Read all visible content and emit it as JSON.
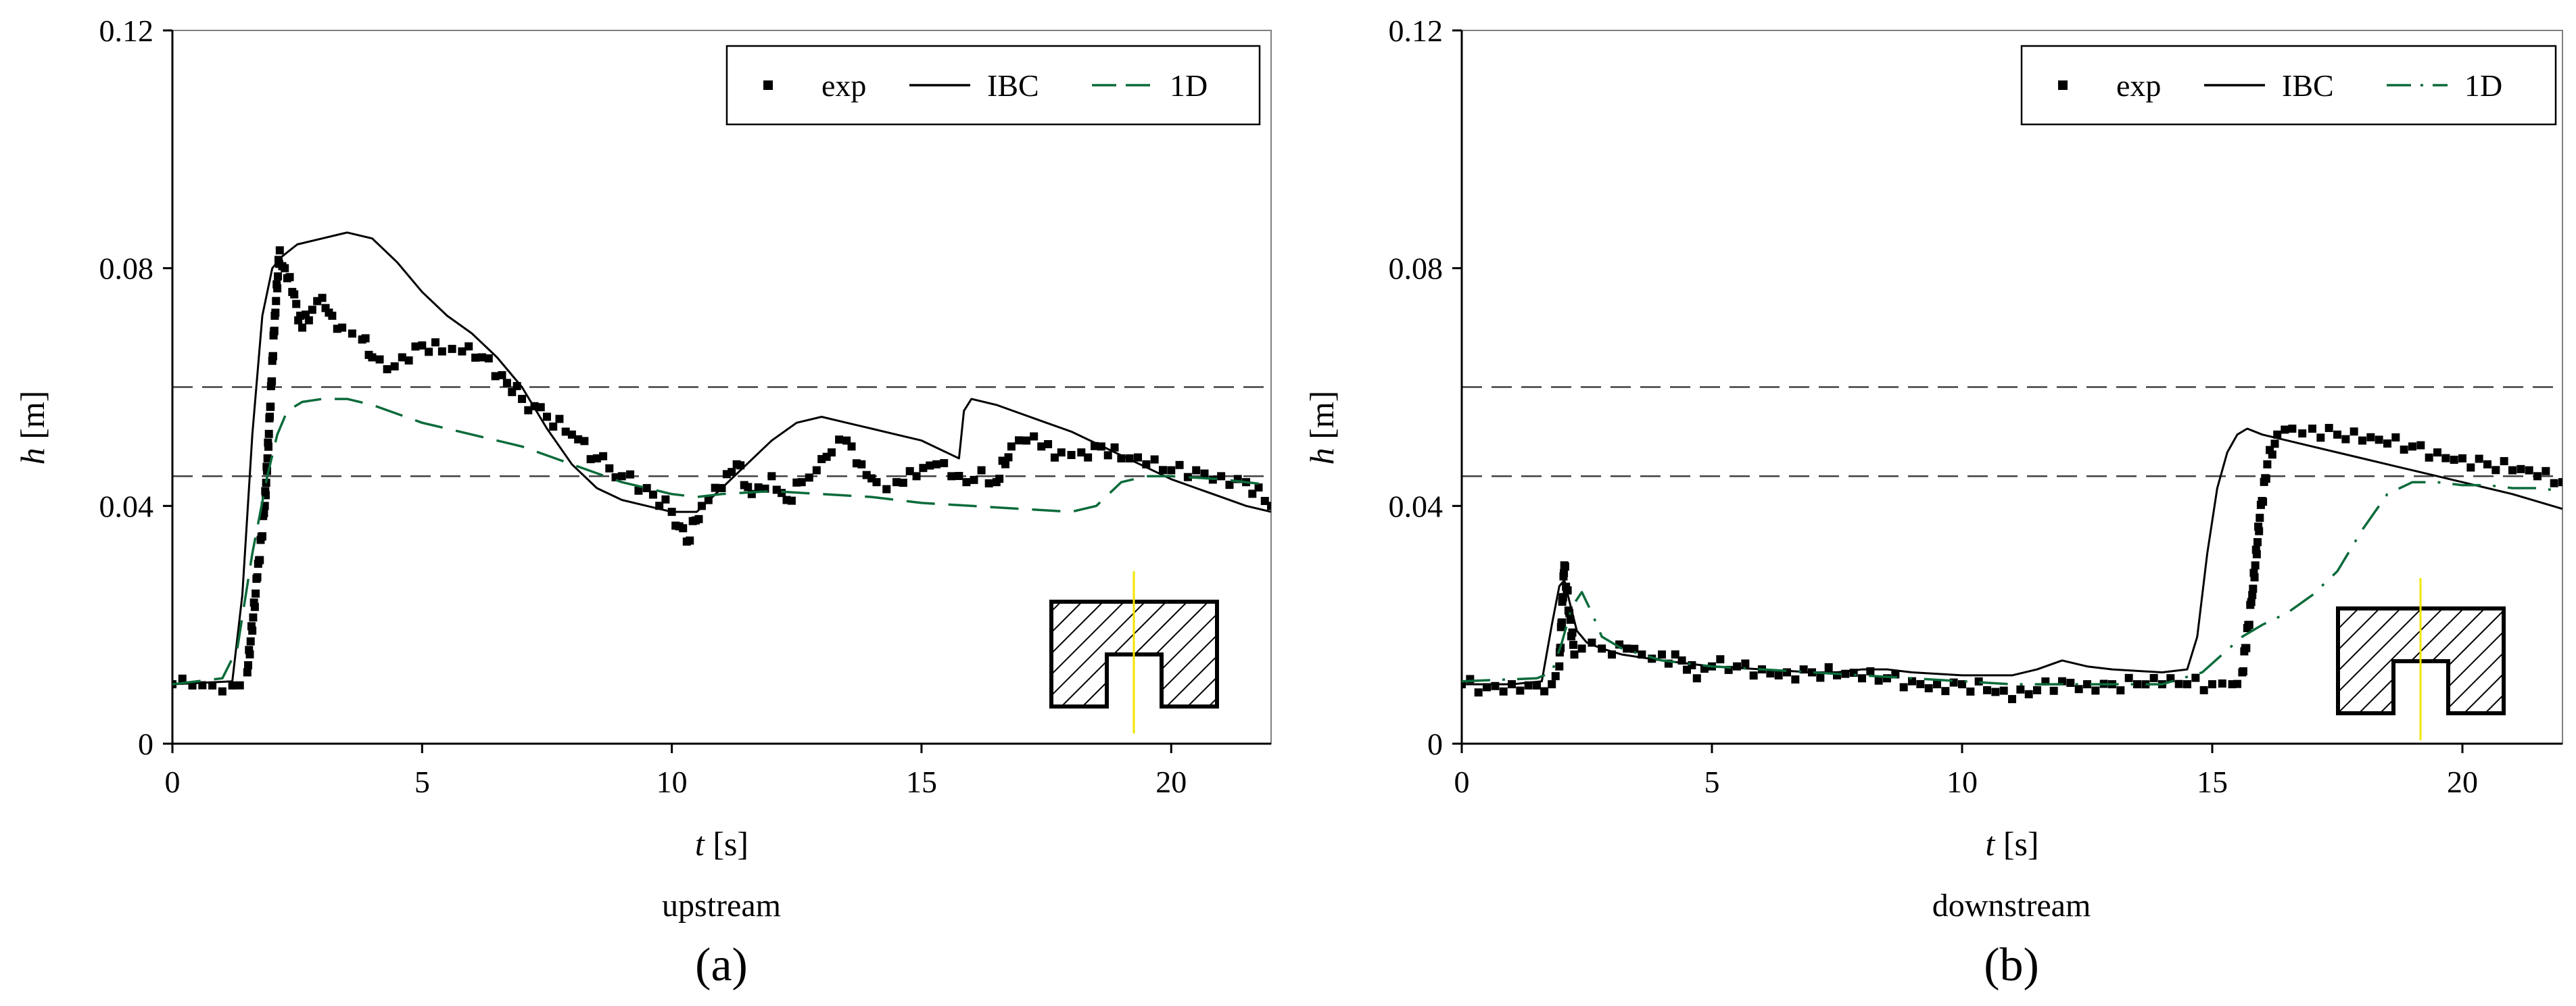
{
  "chart_data": [
    {
      "type": "line",
      "panel": "(a)",
      "caption": "upstream",
      "xlabel_symbol": "t",
      "xlabel_unit": "[s]",
      "ylabel_symbol": "h",
      "ylabel_unit": "[m]",
      "xlim": [
        0,
        22
      ],
      "ylim": [
        0,
        0.12
      ],
      "xticks": [
        "0",
        "5",
        "10",
        "15",
        "20"
      ],
      "yticks": [
        "0",
        "0.04",
        "0.08",
        "0.12"
      ],
      "legend": {
        "position": "top-right",
        "entries": [
          "exp",
          "IBC",
          "1D"
        ]
      },
      "reference_lines": [
        0.045,
        0.06
      ],
      "series": [
        {
          "name": "exp",
          "style": "markers",
          "color": "#000000",
          "x": [
            0,
            0.4,
            0.8,
            1.2,
            1.5,
            1.7,
            1.85,
            1.95,
            2.05,
            2.15,
            2.25,
            2.4,
            2.6,
            2.8,
            3.0,
            3.2,
            3.4,
            3.6,
            3.8,
            4.0,
            4.3,
            4.6,
            5.0,
            5.4,
            5.8,
            6.2,
            6.6,
            7.0,
            7.5,
            8.0,
            8.5,
            9.0,
            9.5,
            10.0,
            10.3,
            10.6,
            11.0,
            11.3,
            11.6,
            12.0,
            12.3,
            12.6,
            12.9,
            13.2,
            13.5,
            13.8,
            14.1,
            14.5,
            14.9,
            15.3,
            15.6,
            15.9,
            16.2,
            16.5,
            16.8,
            17.1,
            17.4,
            17.8,
            18.2,
            18.6,
            19.0,
            19.5,
            20.0,
            20.5,
            21.0,
            21.5,
            22.0
          ],
          "y": [
            0.01,
            0.0098,
            0.0098,
            0.0098,
            0.012,
            0.028,
            0.04,
            0.055,
            0.072,
            0.083,
            0.08,
            0.076,
            0.07,
            0.073,
            0.075,
            0.072,
            0.07,
            0.069,
            0.068,
            0.065,
            0.063,
            0.065,
            0.067,
            0.066,
            0.066,
            0.065,
            0.062,
            0.058,
            0.055,
            0.052,
            0.048,
            0.045,
            0.043,
            0.039,
            0.034,
            0.04,
            0.043,
            0.047,
            0.042,
            0.045,
            0.041,
            0.044,
            0.046,
            0.049,
            0.051,
            0.047,
            0.044,
            0.044,
            0.045,
            0.047,
            0.045,
            0.044,
            0.046,
            0.044,
            0.05,
            0.051,
            0.05,
            0.049,
            0.049,
            0.05,
            0.048,
            0.047,
            0.046,
            0.046,
            0.045,
            0.044,
            0.04
          ]
        },
        {
          "name": "IBC",
          "style": "solid",
          "color": "#000000",
          "x": [
            0,
            1.2,
            1.4,
            1.6,
            1.8,
            2.0,
            2.2,
            2.5,
            3.0,
            3.5,
            4.0,
            4.5,
            5.0,
            5.5,
            6.0,
            6.5,
            7.0,
            7.5,
            8.0,
            8.5,
            9.0,
            9.5,
            10.0,
            10.5,
            11.0,
            11.5,
            12.0,
            12.5,
            13.0,
            13.5,
            14.0,
            14.5,
            15.0,
            15.5,
            15.75,
            15.85,
            16.0,
            16.5,
            17.0,
            17.5,
            18.0,
            18.5,
            19.0,
            19.5,
            20.0,
            20.5,
            21.0,
            21.5,
            22.0
          ],
          "y": [
            0.01,
            0.0105,
            0.025,
            0.052,
            0.072,
            0.08,
            0.082,
            0.084,
            0.085,
            0.086,
            0.085,
            0.081,
            0.076,
            0.072,
            0.069,
            0.065,
            0.06,
            0.053,
            0.047,
            0.043,
            0.041,
            0.04,
            0.039,
            0.039,
            0.043,
            0.047,
            0.051,
            0.054,
            0.055,
            0.054,
            0.053,
            0.052,
            0.051,
            0.049,
            0.048,
            0.056,
            0.058,
            0.057,
            0.0555,
            0.054,
            0.0525,
            0.0505,
            0.0485,
            0.0465,
            0.0445,
            0.043,
            0.0415,
            0.04,
            0.039
          ]
        },
        {
          "name": "1D",
          "style": "dashed",
          "color": "#0b6b3a",
          "x": [
            0,
            1.0,
            1.3,
            1.6,
            1.9,
            2.1,
            2.3,
            2.6,
            3.0,
            3.5,
            4.0,
            5.0,
            6.0,
            7.0,
            8.0,
            9.0,
            10.0,
            10.5,
            11.0,
            12.0,
            13.0,
            14.0,
            15.0,
            16.0,
            17.0,
            18.0,
            18.5,
            19.0,
            19.5,
            20.0,
            21.0,
            22.0
          ],
          "y": [
            0.01,
            0.011,
            0.016,
            0.032,
            0.045,
            0.052,
            0.056,
            0.0575,
            0.058,
            0.058,
            0.057,
            0.054,
            0.052,
            0.05,
            0.047,
            0.044,
            0.042,
            0.0415,
            0.042,
            0.0425,
            0.042,
            0.0415,
            0.0405,
            0.04,
            0.0395,
            0.039,
            0.04,
            0.044,
            0.045,
            0.045,
            0.0445,
            0.0435
          ]
        }
      ]
    },
    {
      "type": "line",
      "panel": "(b)",
      "caption": "downstream",
      "xlabel_symbol": "t",
      "xlabel_unit": "[s]",
      "ylabel_symbol": "h",
      "ylabel_unit": "[m]",
      "xlim": [
        0,
        22
      ],
      "ylim": [
        0,
        0.12
      ],
      "xticks": [
        "0",
        "5",
        "10",
        "15",
        "20"
      ],
      "yticks": [
        "0",
        "0.04",
        "0.08",
        "0.12"
      ],
      "legend": {
        "position": "top-right",
        "entries": [
          "exp",
          "IBC",
          "1D"
        ]
      },
      "reference_lines": [
        0.045,
        0.06
      ],
      "series": [
        {
          "name": "exp",
          "style": "markers",
          "color": "#000000",
          "x": [
            0,
            0.5,
            1.0,
            1.5,
            1.8,
            1.95,
            2.05,
            2.15,
            2.25,
            2.4,
            2.6,
            2.8,
            3.0,
            3.3,
            3.6,
            4.0,
            4.4,
            4.7,
            5.0,
            5.5,
            6.0,
            6.5,
            7.0,
            7.5,
            8.0,
            8.5,
            9.0,
            9.5,
            10.0,
            10.5,
            11.0,
            11.5,
            12.0,
            12.5,
            13.0,
            13.5,
            14.0,
            14.5,
            15.0,
            15.4,
            15.6,
            15.8,
            15.95,
            16.1,
            16.3,
            16.6,
            17.0,
            17.5,
            18.0,
            18.5,
            19.0,
            19.5,
            20.0,
            20.5,
            21.0,
            21.5,
            22.0
          ],
          "y": [
            0.01,
            0.0095,
            0.01,
            0.0098,
            0.01,
            0.013,
            0.03,
            0.022,
            0.015,
            0.016,
            0.017,
            0.016,
            0.015,
            0.016,
            0.015,
            0.015,
            0.014,
            0.011,
            0.013,
            0.013,
            0.0125,
            0.012,
            0.012,
            0.0115,
            0.011,
            0.011,
            0.0105,
            0.01,
            0.01,
            0.009,
            0.0075,
            0.009,
            0.0105,
            0.01,
            0.01,
            0.01,
            0.01,
            0.01,
            0.01,
            0.01,
            0.012,
            0.025,
            0.038,
            0.047,
            0.052,
            0.053,
            0.053,
            0.052,
            0.051,
            0.0505,
            0.05,
            0.049,
            0.048,
            0.047,
            0.046,
            0.045,
            0.044
          ]
        },
        {
          "name": "IBC",
          "style": "solid",
          "color": "#000000",
          "x": [
            0,
            1.0,
            1.6,
            1.8,
            1.95,
            2.05,
            2.15,
            2.3,
            2.5,
            2.8,
            3.2,
            4.0,
            5.0,
            6.0,
            7.0,
            7.5,
            8.0,
            8.5,
            9.0,
            10.0,
            11.0,
            11.5,
            12.0,
            12.5,
            13.0,
            14.0,
            14.5,
            14.7,
            14.9,
            15.1,
            15.3,
            15.5,
            15.7,
            16.0,
            16.5,
            17.0,
            18.0,
            19.0,
            20.0,
            21.0,
            22.0
          ],
          "y": [
            0.01,
            0.01,
            0.0105,
            0.02,
            0.0265,
            0.0275,
            0.024,
            0.019,
            0.017,
            0.016,
            0.015,
            0.014,
            0.013,
            0.0125,
            0.012,
            0.012,
            0.0125,
            0.0125,
            0.012,
            0.0115,
            0.0115,
            0.0125,
            0.014,
            0.013,
            0.0125,
            0.012,
            0.0125,
            0.018,
            0.032,
            0.043,
            0.049,
            0.052,
            0.053,
            0.052,
            0.051,
            0.05,
            0.048,
            0.046,
            0.044,
            0.042,
            0.0395
          ]
        },
        {
          "name": "1D",
          "style": "dashdot",
          "color": "#0b6b3a",
          "x": [
            0,
            1.5,
            1.8,
            2.0,
            2.2,
            2.4,
            2.6,
            2.8,
            3.2,
            4.0,
            5.0,
            6.0,
            7.0,
            8.0,
            9.0,
            10.0,
            11.0,
            12.0,
            13.0,
            14.0,
            14.8,
            15.2,
            15.6,
            16.0,
            16.5,
            17.0,
            17.5,
            18.0,
            18.5,
            19.0,
            19.5,
            20.0,
            20.5,
            21.0,
            21.5,
            22.0
          ],
          "y": [
            0.0105,
            0.011,
            0.012,
            0.017,
            0.023,
            0.0255,
            0.022,
            0.018,
            0.016,
            0.014,
            0.013,
            0.0125,
            0.012,
            0.0115,
            0.011,
            0.0105,
            0.01,
            0.01,
            0.01,
            0.01,
            0.012,
            0.015,
            0.018,
            0.02,
            0.022,
            0.025,
            0.029,
            0.036,
            0.042,
            0.044,
            0.044,
            0.0435,
            0.0435,
            0.043,
            0.043,
            0.0425
          ]
        }
      ]
    }
  ]
}
